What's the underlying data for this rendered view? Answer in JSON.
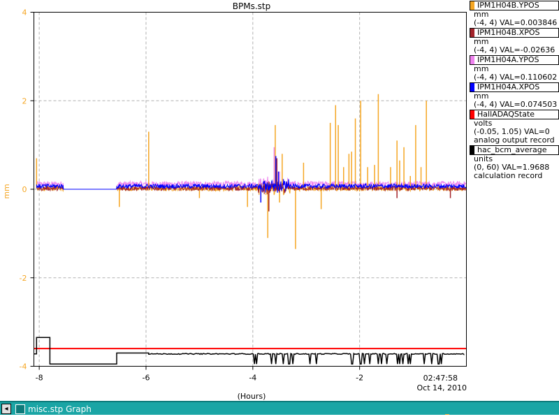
{
  "window": {
    "taskbar_title": "misc.stp Graph",
    "taskbar_button": "◂"
  },
  "chart_data": {
    "type": "line",
    "title": "BPMs.stp",
    "ylabel": "mm",
    "xlabel": "(Hours)",
    "timestamp": "02:47:58",
    "date": "Oct 14, 2010",
    "xlim": [
      -8.1,
      0
    ],
    "ylim": [
      -4,
      4
    ],
    "x_ticks": [
      -8,
      -6,
      -4,
      -2
    ],
    "x_tick_labels": [
      "-8",
      "-6",
      "-4",
      "-2"
    ],
    "y_ticks": [
      4,
      2,
      0,
      -2,
      -4
    ],
    "y_tick_labels": [
      "4",
      "2",
      "0",
      "-2",
      "-4"
    ],
    "grid": true,
    "legend_position": "right",
    "colors": {
      "ypos_b": "#f5a623",
      "xpos_b": "#a3232a",
      "ypos_a": "#ee82ee",
      "xpos_a": "#0000ff",
      "daq": "#ff0000",
      "bcm": "#000000"
    },
    "series": [
      {
        "name": "IPM1H04B.YPOS",
        "color": "#f5a623",
        "units": "mm",
        "range_text": "(-4, 4) VAL=0.003846",
        "record": "",
        "base": 0.02,
        "noise": 0.06,
        "gaps": [
          [
            -7.55,
            -6.55
          ]
        ],
        "spikes": [
          {
            "x": -8.05,
            "y": 0.7
          },
          {
            "x": -6.5,
            "y": -0.4
          },
          {
            "x": -5.95,
            "y": 1.3
          },
          {
            "x": -5.0,
            "y": -0.2
          },
          {
            "x": -4.1,
            "y": -0.4
          },
          {
            "x": -3.72,
            "y": -1.1
          },
          {
            "x": -3.58,
            "y": 1.45
          },
          {
            "x": -3.5,
            "y": -0.3
          },
          {
            "x": -3.45,
            "y": 0.8
          },
          {
            "x": -3.2,
            "y": -1.35
          },
          {
            "x": -3.05,
            "y": 0.6
          },
          {
            "x": -2.72,
            "y": -0.45
          },
          {
            "x": -2.55,
            "y": 1.5
          },
          {
            "x": -2.45,
            "y": 1.9
          },
          {
            "x": -2.4,
            "y": 1.45
          },
          {
            "x": -2.3,
            "y": 0.5
          },
          {
            "x": -2.2,
            "y": 0.8
          },
          {
            "x": -2.15,
            "y": 0.85
          },
          {
            "x": -2.08,
            "y": 1.6
          },
          {
            "x": -1.98,
            "y": 2.0
          },
          {
            "x": -1.85,
            "y": 0.5
          },
          {
            "x": -1.72,
            "y": 0.55
          },
          {
            "x": -1.65,
            "y": 2.15
          },
          {
            "x": -1.42,
            "y": 0.5
          },
          {
            "x": -1.3,
            "y": 1.1
          },
          {
            "x": -1.25,
            "y": 0.65
          },
          {
            "x": -1.17,
            "y": 0.95
          },
          {
            "x": -1.05,
            "y": 0.3
          },
          {
            "x": -0.95,
            "y": 1.45
          },
          {
            "x": -0.85,
            "y": 0.5
          },
          {
            "x": -0.75,
            "y": 2.0
          }
        ]
      },
      {
        "name": "IPM1H04B.XPOS",
        "color": "#a3232a",
        "units": "mm",
        "range_text": "(-4, 4) VAL=-0.02636",
        "record": "",
        "base": 0.02,
        "noise": 0.05,
        "gaps": [
          [
            -7.55,
            -6.55
          ]
        ],
        "spikes": [
          {
            "x": -3.7,
            "y": -0.5
          },
          {
            "x": -3.55,
            "y": 0.7
          },
          {
            "x": -1.3,
            "y": -0.2
          },
          {
            "x": -0.3,
            "y": -0.2
          }
        ]
      },
      {
        "name": "IPM1H04A.YPOS",
        "color": "#ee82ee",
        "units": "mm",
        "range_text": "(-4, 4) VAL=0.110602",
        "record": "",
        "base": 0.12,
        "noise": 0.06,
        "gaps": [
          [
            -7.55,
            -6.55
          ]
        ],
        "spikes": [
          {
            "x": -3.6,
            "y": 0.95
          },
          {
            "x": -3.55,
            "y": 0.6
          },
          {
            "x": -3.5,
            "y": 0.4
          }
        ]
      },
      {
        "name": "IPM1H04A.XPOS",
        "color": "#0000ff",
        "units": "mm",
        "range_text": "(-4, 4) VAL=0.074503",
        "record": "",
        "base": 0.07,
        "noise": 0.05,
        "gaps": [
          [
            -7.55,
            -6.55
          ]
        ],
        "spikes": [
          {
            "x": -3.57,
            "y": 0.75
          },
          {
            "x": -3.52,
            "y": 0.4
          },
          {
            "x": -3.85,
            "y": -0.3
          }
        ]
      },
      {
        "name": "HallADAQState",
        "color": "#ff0000",
        "units": "volts",
        "range_text": "(-0.05, 1.05) VAL=0",
        "record": "analog output record",
        "value_mm": -3.6
      },
      {
        "name": "hac_bcm_average",
        "color": "#000000",
        "units": "units",
        "range_text": "(0, 60) VAL=1.9688",
        "record": "calculation record"
      }
    ]
  }
}
